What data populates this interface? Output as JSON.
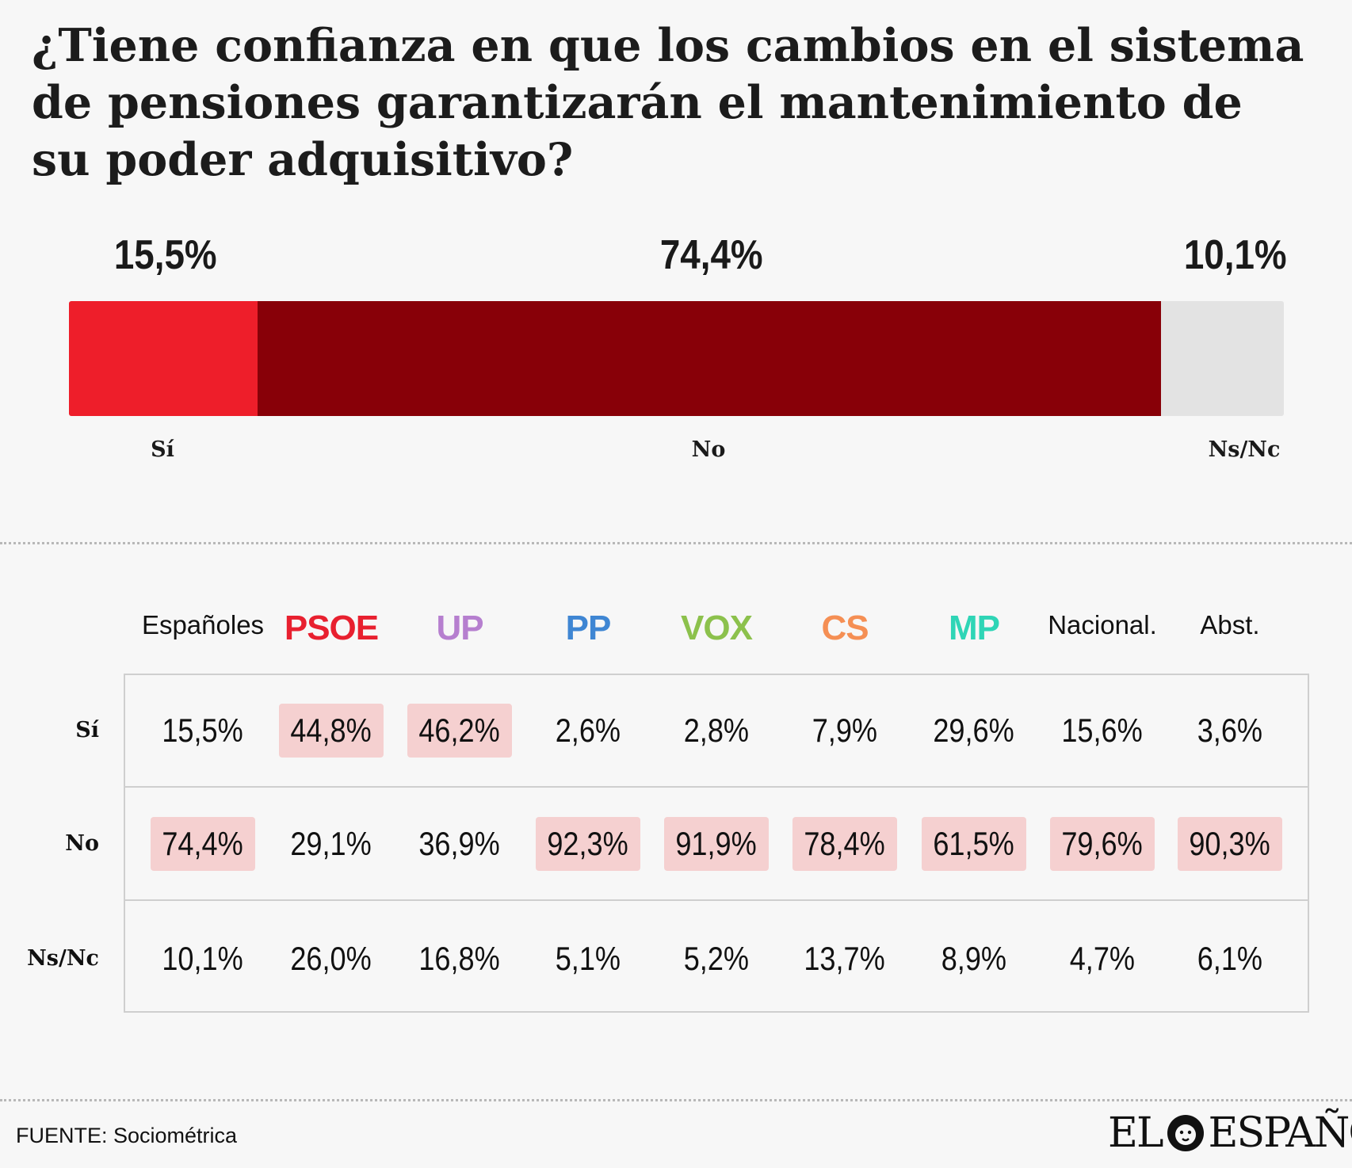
{
  "title": "¿Tiene confianza en que los cambios en el sistema de pensiones garantizarán el mantenimiento de su poder adquisitivo?",
  "chart_data": {
    "type": "bar",
    "stacked": true,
    "orientation": "horizontal",
    "categories": [
      "Sí",
      "No",
      "Ns/Nc"
    ],
    "values": [
      15.5,
      74.4,
      10.1
    ],
    "value_labels": [
      "15,5%",
      "74,4%",
      "10,1%"
    ],
    "colors": [
      "#ee1e2a",
      "#880008",
      "#e3e3e3"
    ]
  },
  "table": {
    "columns": [
      {
        "label": "Españoles",
        "color": "#111111",
        "party": false
      },
      {
        "label": "PSOE",
        "color": "#e8202f",
        "party": true
      },
      {
        "label": "UP",
        "color": "#b67fcf",
        "party": true
      },
      {
        "label": "PP",
        "color": "#3f86d3",
        "party": true
      },
      {
        "label": "VOX",
        "color": "#8cc14c",
        "party": true
      },
      {
        "label": "CS",
        "color": "#f58f54",
        "party": true
      },
      {
        "label": "MP",
        "color": "#2fd5b6",
        "party": true
      },
      {
        "label": "Nacional.",
        "color": "#111111",
        "party": false
      },
      {
        "label": "Abst.",
        "color": "#111111",
        "party": false
      }
    ],
    "rows": [
      {
        "label": "Sí",
        "cells": [
          "15,5%",
          "44,8%",
          "46,2%",
          "2,6%",
          "2,8%",
          "7,9%",
          "29,6%",
          "15,6%",
          "3,6%"
        ],
        "highlight": [
          false,
          true,
          true,
          false,
          false,
          false,
          false,
          false,
          false
        ]
      },
      {
        "label": "No",
        "cells": [
          "74,4%",
          "29,1%",
          "36,9%",
          "92,3%",
          "91,9%",
          "78,4%",
          "61,5%",
          "79,6%",
          "90,3%"
        ],
        "highlight": [
          true,
          false,
          false,
          true,
          true,
          true,
          true,
          true,
          true
        ]
      },
      {
        "label": "Ns/Nc",
        "cells": [
          "10,1%",
          "26,0%",
          "16,8%",
          "5,1%",
          "5,2%",
          "13,7%",
          "8,9%",
          "4,7%",
          "6,1%"
        ],
        "highlight": [
          false,
          false,
          false,
          false,
          false,
          false,
          false,
          false,
          false
        ]
      }
    ],
    "highlight_color": "#f5d0d0"
  },
  "source": "FUENTE: Sociométrica",
  "logo": {
    "left": "EL",
    "right": "ESPAÑOL",
    "icon": "lion-head-icon"
  }
}
